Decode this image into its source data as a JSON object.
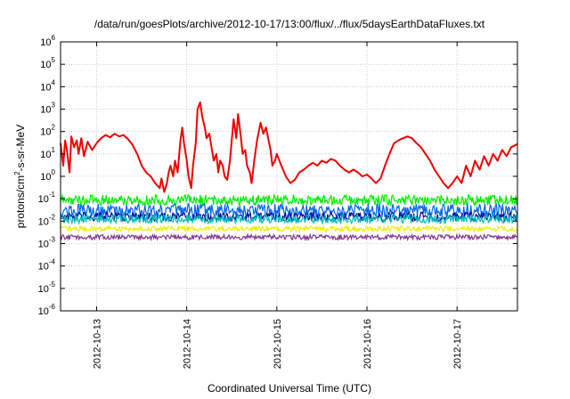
{
  "chart_data": {
    "type": "line",
    "title": "/data/run/goesPlots/archive/2012-10-17/13:00/flux/../flux/5daysEarthDataFluxes.txt",
    "xlabel": "Coordinated Universal Time (UTC)",
    "ylabel": {
      "base": "protons/cm",
      "sup": "2",
      "rest": "-s-sr-MeV"
    },
    "x_unit": "days from 2012-10-12 00:00 UTC",
    "xlim": [
      0.6,
      5.67
    ],
    "x_ticks": [
      {
        "x": 1,
        "label": "2012-10-13"
      },
      {
        "x": 2,
        "label": "2012-10-14"
      },
      {
        "x": 3,
        "label": "2012-10-15"
      },
      {
        "x": 4,
        "label": "2012-10-16"
      },
      {
        "x": 5,
        "label": "2012-10-17"
      }
    ],
    "y_scale": "log",
    "ylim_exponent": [
      -6,
      6
    ],
    "y_ticks": [
      {
        "base": "10",
        "exp": "-6"
      },
      {
        "base": "10",
        "exp": "-5"
      },
      {
        "base": "10",
        "exp": "-4"
      },
      {
        "base": "10",
        "exp": "-3"
      },
      {
        "base": "10",
        "exp": "-2"
      },
      {
        "base": "10",
        "exp": "-1"
      },
      {
        "base": "10",
        "exp": "0"
      },
      {
        "base": "10",
        "exp": "1"
      },
      {
        "base": "10",
        "exp": "2"
      },
      {
        "base": "10",
        "exp": "3"
      },
      {
        "base": "10",
        "exp": "4"
      },
      {
        "base": "10",
        "exp": "5"
      },
      {
        "base": "10",
        "exp": "6"
      }
    ],
    "grid": true,
    "series": [
      {
        "color": "#ee0000",
        "points": [
          [
            0.6,
            30
          ],
          [
            0.63,
            3
          ],
          [
            0.65,
            40
          ],
          [
            0.67,
            15
          ],
          [
            0.7,
            1.5
          ],
          [
            0.72,
            60
          ],
          [
            0.75,
            20
          ],
          [
            0.78,
            40
          ],
          [
            0.8,
            10
          ],
          [
            0.83,
            50
          ],
          [
            0.86,
            8
          ],
          [
            0.9,
            35
          ],
          [
            0.95,
            15
          ],
          [
            1.0,
            30
          ],
          [
            1.05,
            50
          ],
          [
            1.1,
            70
          ],
          [
            1.15,
            55
          ],
          [
            1.2,
            80
          ],
          [
            1.25,
            60
          ],
          [
            1.3,
            70
          ],
          [
            1.35,
            45
          ],
          [
            1.4,
            25
          ],
          [
            1.45,
            10
          ],
          [
            1.5,
            3
          ],
          [
            1.55,
            1.5
          ],
          [
            1.6,
            1
          ],
          [
            1.65,
            0.5
          ],
          [
            1.7,
            0.3
          ],
          [
            1.72,
            0.8
          ],
          [
            1.75,
            0.2
          ],
          [
            1.78,
            0.5
          ],
          [
            1.8,
            1.5
          ],
          [
            1.82,
            3
          ],
          [
            1.85,
            1
          ],
          [
            1.87,
            5
          ],
          [
            1.9,
            1.5
          ],
          [
            1.93,
            40
          ],
          [
            1.95,
            150
          ],
          [
            1.97,
            30
          ],
          [
            2.0,
            5
          ],
          [
            2.02,
            1
          ],
          [
            2.05,
            0.3
          ],
          [
            2.07,
            3
          ],
          [
            2.1,
            30
          ],
          [
            2.12,
            1000
          ],
          [
            2.15,
            2000
          ],
          [
            2.17,
            500
          ],
          [
            2.2,
            150
          ],
          [
            2.22,
            50
          ],
          [
            2.25,
            80
          ],
          [
            2.28,
            15
          ],
          [
            2.3,
            5
          ],
          [
            2.33,
            10
          ],
          [
            2.35,
            1.5
          ],
          [
            2.37,
            5
          ],
          [
            2.4,
            3
          ],
          [
            2.42,
            1
          ],
          [
            2.45,
            0.7
          ],
          [
            2.48,
            5
          ],
          [
            2.5,
            40
          ],
          [
            2.52,
            350
          ],
          [
            2.55,
            50
          ],
          [
            2.57,
            600
          ],
          [
            2.6,
            60
          ],
          [
            2.62,
            10
          ],
          [
            2.65,
            15
          ],
          [
            2.67,
            3
          ],
          [
            2.7,
            1.5
          ],
          [
            2.72,
            0.5
          ],
          [
            2.75,
            5
          ],
          [
            2.78,
            40
          ],
          [
            2.8,
            100
          ],
          [
            2.82,
            250
          ],
          [
            2.85,
            80
          ],
          [
            2.88,
            150
          ],
          [
            2.9,
            60
          ],
          [
            2.93,
            15
          ],
          [
            2.95,
            3
          ],
          [
            2.98,
            5
          ],
          [
            3.0,
            10
          ],
          [
            3.05,
            3
          ],
          [
            3.1,
            1
          ],
          [
            3.15,
            0.5
          ],
          [
            3.2,
            0.7
          ],
          [
            3.25,
            1.5
          ],
          [
            3.3,
            2
          ],
          [
            3.35,
            3
          ],
          [
            3.4,
            4
          ],
          [
            3.45,
            3
          ],
          [
            3.5,
            5
          ],
          [
            3.55,
            4
          ],
          [
            3.6,
            6
          ],
          [
            3.65,
            5
          ],
          [
            3.7,
            3
          ],
          [
            3.75,
            2
          ],
          [
            3.8,
            1.5
          ],
          [
            3.85,
            2
          ],
          [
            3.9,
            1.5
          ],
          [
            3.95,
            1
          ],
          [
            4.0,
            1.2
          ],
          [
            4.05,
            0.8
          ],
          [
            4.1,
            0.5
          ],
          [
            4.15,
            0.8
          ],
          [
            4.2,
            3
          ],
          [
            4.25,
            10
          ],
          [
            4.3,
            30
          ],
          [
            4.35,
            40
          ],
          [
            4.4,
            50
          ],
          [
            4.45,
            60
          ],
          [
            4.5,
            50
          ],
          [
            4.55,
            30
          ],
          [
            4.6,
            20
          ],
          [
            4.65,
            10
          ],
          [
            4.7,
            5
          ],
          [
            4.75,
            2
          ],
          [
            4.8,
            1
          ],
          [
            4.85,
            0.5
          ],
          [
            4.9,
            0.3
          ],
          [
            4.95,
            0.5
          ],
          [
            5.0,
            1
          ],
          [
            5.05,
            0.5
          ],
          [
            5.1,
            3
          ],
          [
            5.15,
            1
          ],
          [
            5.2,
            5
          ],
          [
            5.25,
            2
          ],
          [
            5.3,
            8
          ],
          [
            5.35,
            3
          ],
          [
            5.4,
            10
          ],
          [
            5.45,
            5
          ],
          [
            5.5,
            15
          ],
          [
            5.55,
            8
          ],
          [
            5.6,
            20
          ],
          [
            5.65,
            25
          ],
          [
            5.67,
            28
          ]
        ]
      },
      {
        "color": "#00ee00",
        "band": [
          0.05,
          0.15
        ]
      },
      {
        "color": "#0066ee",
        "band": [
          0.015,
          0.06
        ]
      },
      {
        "color": "#000099",
        "band": [
          0.01,
          0.025
        ]
      },
      {
        "color": "#00bbbb",
        "band": [
          0.008,
          0.02
        ]
      },
      {
        "color": "#eeee00",
        "band": [
          0.0035,
          0.006
        ]
      },
      {
        "color": "#883388",
        "band": [
          0.0015,
          0.0025
        ]
      }
    ]
  }
}
